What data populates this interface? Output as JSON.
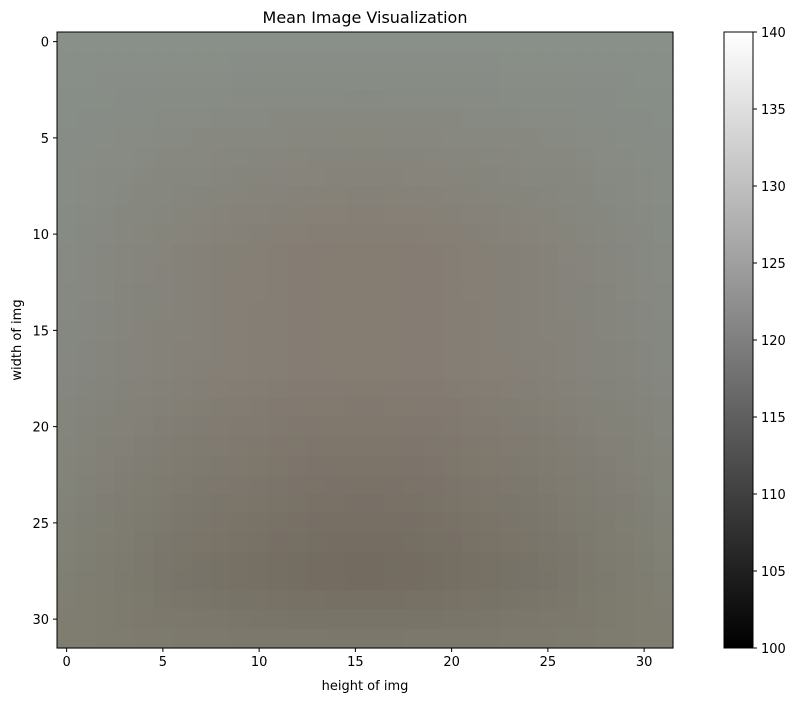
{
  "chart_data": {
    "type": "heatmap",
    "title": "Mean Image Visualization",
    "xlabel": "height of img",
    "ylabel": "width of img",
    "grid": false,
    "rows": 32,
    "cols": 32,
    "x_ticks": [
      0,
      5,
      10,
      15,
      20,
      25,
      30
    ],
    "y_ticks": [
      0,
      5,
      10,
      15,
      20,
      25,
      30
    ],
    "image_colors": {
      "top_edge": "#889089",
      "center_upper": "#857c72",
      "center_lower": "#736b60",
      "side_edge": "#858780",
      "bottom_edge": "#7f7d70"
    },
    "colorbar": {
      "cmap": "gray",
      "range": [
        100,
        140
      ],
      "ticks": [
        100,
        105,
        110,
        115,
        120,
        125,
        130,
        135,
        140
      ]
    }
  }
}
